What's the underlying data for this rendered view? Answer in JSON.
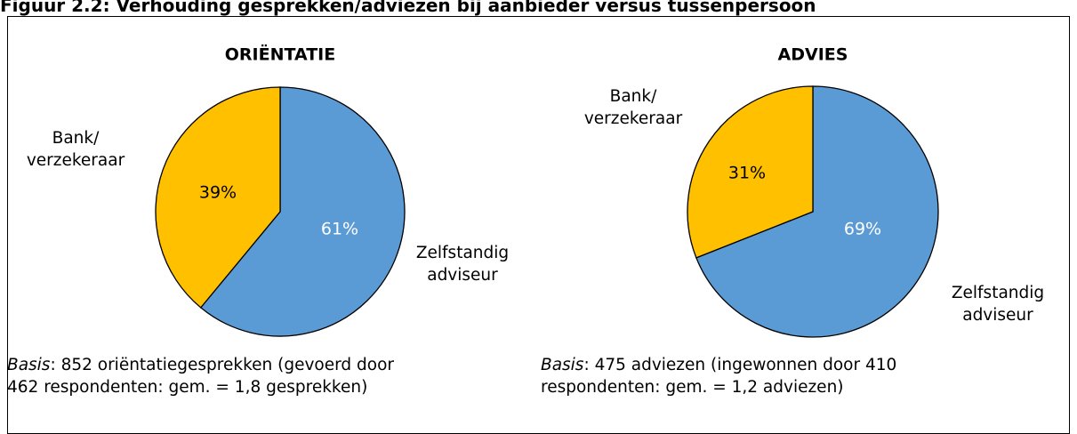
{
  "figure_title": "Figuur 2.2: Verhouding gesprekken/adviezen bij aanbieder versus tussenpersoon",
  "chart_data": [
    {
      "type": "pie",
      "title": "ORIËNTATIE",
      "categories": [
        "Zelfstandig\nadviseur",
        "Bank/\nverzekeraar"
      ],
      "values": [
        61,
        39
      ],
      "value_labels": [
        "61%",
        "39%"
      ],
      "colors": [
        "#5b9bd5",
        "#ffc000"
      ],
      "label_colors": [
        "#ffffff",
        "#000000"
      ]
    },
    {
      "type": "pie",
      "title": "ADVIES",
      "categories": [
        "Zelfstandig\nadviseur",
        "Bank/\nverzekeraar"
      ],
      "values": [
        69,
        31
      ],
      "value_labels": [
        "69%",
        "31%"
      ],
      "colors": [
        "#5b9bd5",
        "#ffc000"
      ],
      "label_colors": [
        "#ffffff",
        "#000000"
      ]
    }
  ],
  "notes": [
    {
      "emphasis": "Basis",
      "text": ": 852 oriëntatiegesprekken (gevoerd door 462 respondenten: gem. = 1,8 gesprekken)"
    },
    {
      "emphasis": "Basis",
      "text": ": 475 adviezen (ingewonnen door 410 respondenten: gem. = 1,2 adviezen)"
    }
  ]
}
